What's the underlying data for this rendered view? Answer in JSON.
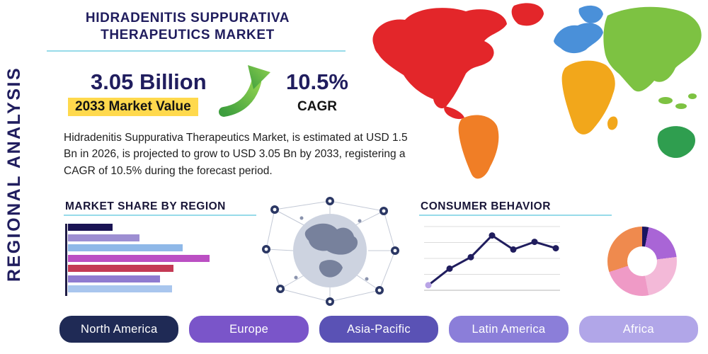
{
  "title": "HIDRADENITIS SUPPURATIVA THERAPEUTICS MARKET",
  "vertical_label": "REGIONAL ANALYSIS",
  "stats": {
    "value": "3.05 Billion",
    "value_caption": "2033 Market Value",
    "cagr": "10.5%",
    "cagr_caption": "CAGR"
  },
  "description": "Hidradenitis Suppurativa Therapeutics Market, is estimated at USD 1.5 Bn in 2026, is projected to grow to USD 3.05 Bn by 2033, registering a CAGR of 10.5% during the forecast period.",
  "sections": {
    "market_share": "MARKET SHARE BY REGION",
    "consumer_behavior": "CONSUMER BEHAVIOR"
  },
  "colors": {
    "navy": "#201d5e",
    "teal": "#97dbe9",
    "highlight": "#ffd94d"
  },
  "region_buttons": [
    {
      "label": "North America",
      "color": "#1f2a55"
    },
    {
      "label": "Europe",
      "color": "#7a55c9"
    },
    {
      "label": "Asia-Pacific",
      "color": "#5a52b5"
    },
    {
      "label": "Latin America",
      "color": "#8b7ed9"
    },
    {
      "label": "Africa",
      "color": "#b1a6e8"
    }
  ],
  "map": {
    "regions": {
      "north_america": "#e3262a",
      "greenland": "#e3262a",
      "south_america": "#f07e26",
      "europe": "#4a90d9",
      "scandinavia": "#4a90d9",
      "africa": "#f2a71b",
      "asia": "#7dc242",
      "australia": "#2f9e4f"
    }
  },
  "chart_data": [
    {
      "type": "bar",
      "orientation": "horizontal",
      "title": "MARKET SHARE BY REGION",
      "categories": [
        "",
        "",
        "",
        "",
        "",
        "",
        ""
      ],
      "values": [
        30,
        48,
        77,
        95,
        71,
        62,
        70
      ],
      "colors": [
        "#1a1454",
        "#9d8ed2",
        "#8fb8e8",
        "#bb4fc3",
        "#c43a55",
        "#8f7bd0",
        "#a9c6ee"
      ],
      "xlim": [
        0,
        100
      ],
      "xlabel": "",
      "ylabel": "",
      "grid": false,
      "legend": false
    },
    {
      "type": "line",
      "title": "CONSUMER BEHAVIOR",
      "x": [
        1,
        2,
        3,
        4,
        5,
        6,
        7
      ],
      "values": [
        0.8,
        3.4,
        5.2,
        8.6,
        6.4,
        7.6,
        6.6
      ],
      "ylim": [
        0,
        10
      ],
      "line_color": "#201d5e",
      "marker_color": "#201d5e",
      "first_marker_color": "#b9a4e6",
      "grid": true,
      "legend": false
    },
    {
      "type": "pie",
      "title": "",
      "donut": true,
      "slices": [
        {
          "label": "segment-navy",
          "value": 3,
          "color": "#1a1560"
        },
        {
          "label": "segment-violet",
          "value": 20,
          "color": "#a965d6"
        },
        {
          "label": "segment-light-pink",
          "value": 24,
          "color": "#f3b9d8"
        },
        {
          "label": "segment-pink",
          "value": 23,
          "color": "#ef9ac6"
        },
        {
          "label": "segment-orange",
          "value": 30,
          "color": "#ef8a4e"
        }
      ],
      "legend": false
    }
  ]
}
